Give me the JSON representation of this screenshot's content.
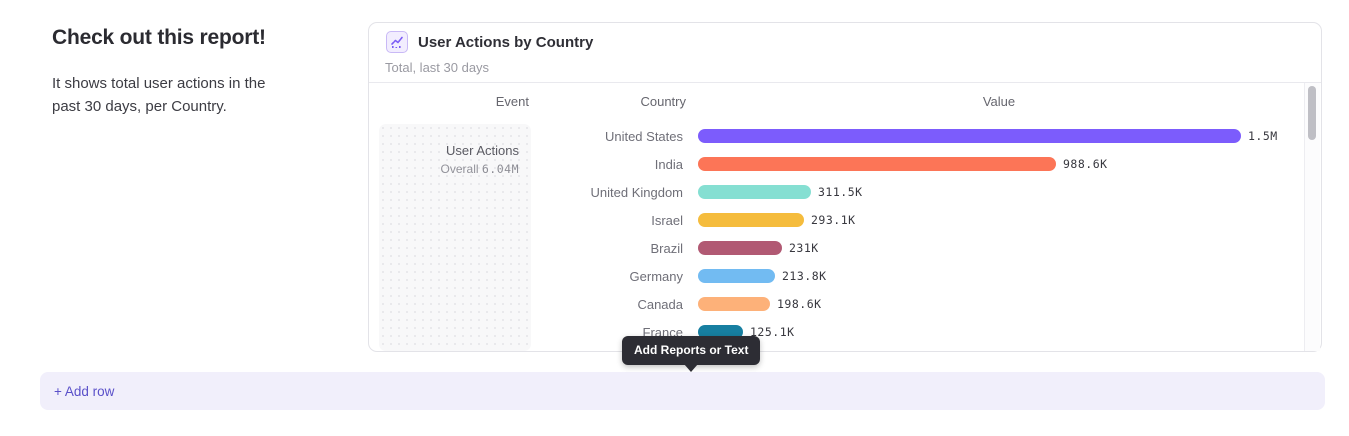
{
  "intro": {
    "heading": "Check out this report!",
    "description": "It shows total user actions in the past 30 days, per Country."
  },
  "report_card": {
    "icon": "line-chart-icon",
    "title": "User Actions by Country",
    "subtitle": "Total, last 30 days",
    "table": {
      "columns": [
        "Event",
        "Country",
        "Value"
      ],
      "event_cell": {
        "event_name": "User Actions",
        "overall_label": "Overall",
        "overall_value": "6.04M"
      }
    }
  },
  "chart_data": {
    "type": "bar",
    "orientation": "horizontal",
    "title": "User Actions by Country",
    "subtitle": "Total, last 30 days",
    "xlabel": "Value",
    "ylabel": "Country",
    "categories": [
      "United States",
      "India",
      "United Kingdom",
      "Israel",
      "Brazil",
      "Germany",
      "Canada",
      "France"
    ],
    "values": [
      1500000,
      988600,
      311500,
      293100,
      231000,
      213800,
      198600,
      125100
    ],
    "value_labels": [
      "1.5M",
      "988.6K",
      "311.5K",
      "293.1K",
      "231K",
      "213.8K",
      "198.6K",
      "125.1K"
    ],
    "colors": [
      "#7c5cfc",
      "#fc7557",
      "#85dfd2",
      "#f5bc3d",
      "#b15973",
      "#72bbf2",
      "#fdb179",
      "#177fa1"
    ],
    "overall_total": "6.04M",
    "grid": false,
    "legend": false
  },
  "tooltip": {
    "label": "Add Reports or Text"
  },
  "add_row": {
    "label": "+ Add row"
  },
  "theme": {
    "accent_purple": "#7c5cfc",
    "add_row_bg": "#f1effb",
    "add_row_text": "#5a50c9",
    "tooltip_bg": "#2d2d34",
    "card_border": "#e3e3e8"
  }
}
